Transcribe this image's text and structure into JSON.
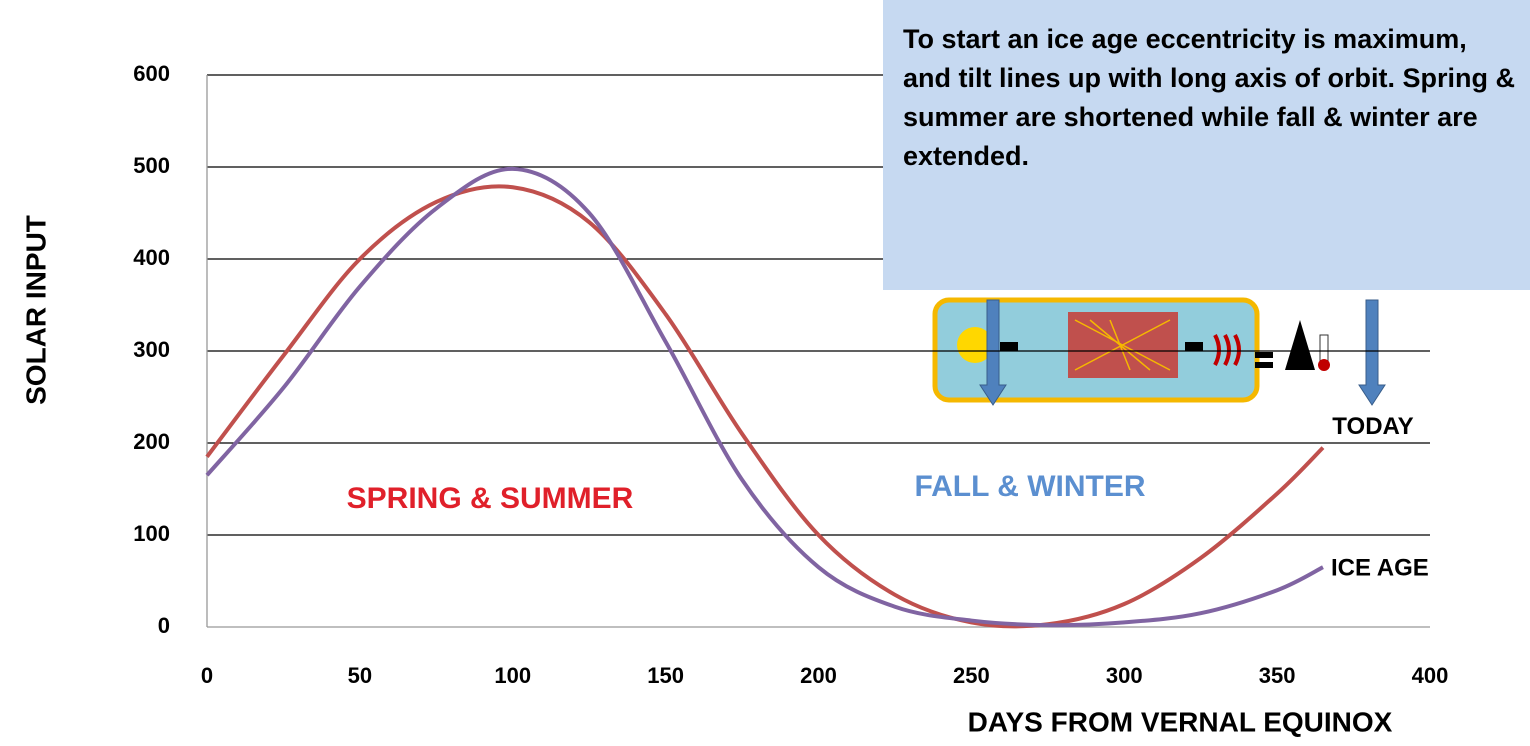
{
  "chart_data": {
    "type": "line",
    "x_label": "DAYS FROM VERNAL EQUINOX",
    "y_label": "SOLAR INPUT",
    "x": [
      0,
      25,
      50,
      75,
      100,
      125,
      150,
      175,
      200,
      225,
      250,
      275,
      300,
      325,
      350,
      365
    ],
    "series": [
      {
        "name": "TODAY",
        "color": "#c0504d",
        "values": [
          185,
          295,
          400,
          462,
          478,
          440,
          340,
          210,
          100,
          35,
          5,
          3,
          25,
          75,
          145,
          195
        ]
      },
      {
        "name": "ICE AGE",
        "color": "#8064a2",
        "values": [
          165,
          260,
          370,
          455,
          498,
          450,
          310,
          160,
          65,
          22,
          7,
          2,
          5,
          15,
          40,
          65
        ]
      }
    ],
    "xlim": [
      0,
      400
    ],
    "xticks": [
      0,
      50,
      100,
      150,
      200,
      250,
      300,
      350,
      400
    ],
    "ylim": [
      0,
      600
    ],
    "yticks": [
      0,
      100,
      200,
      300,
      400,
      500,
      600
    ],
    "grid": true,
    "annotations": [
      {
        "text": "SPRING & SUMMER",
        "color": "#e0202a"
      },
      {
        "text": "FALL & WINTER",
        "color": "#5b8fd0"
      },
      {
        "text": "To start an ice age eccentricity is maximum, and tilt lines up with long axis of orbit. Spring & summer are shortened while fall & winter are extended.",
        "color": "#000000"
      }
    ]
  }
}
